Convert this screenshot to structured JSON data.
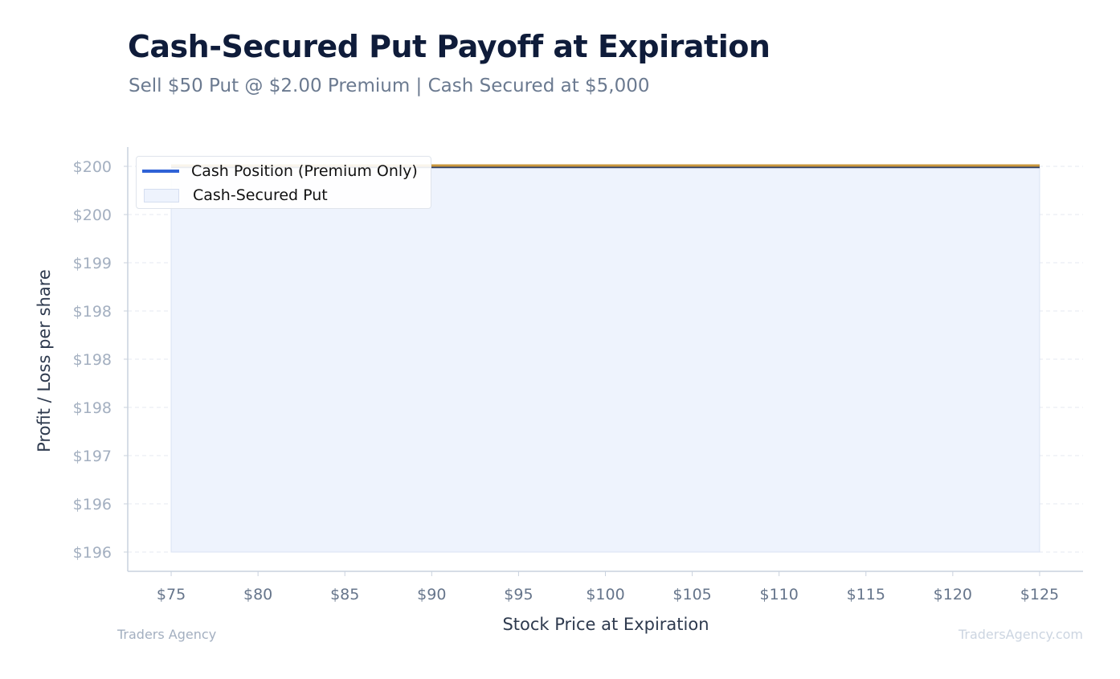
{
  "title": "Cash-Secured Put Payoff at Expiration",
  "subtitle": "Sell $50 Put @ $2.00 Premium | Cash Secured at $5,000",
  "footer": {
    "left": "Traders Agency",
    "right": "TradersAgency.com"
  },
  "colors": {
    "title": "#0f1c3a",
    "subtitle": "#6b7a90",
    "series_line": "#2f62d6",
    "top_line": "#c9973d",
    "area_fill": "#eef3fd",
    "tick_text": "#a3afc0",
    "x_tick_text": "#66758b",
    "grid": "#e6eaf0"
  },
  "chart_data": {
    "type": "area",
    "xlabel": "Stock Price at Expiration",
    "ylabel": "Profit / Loss per share",
    "x_ticks": [
      "$75",
      "$80",
      "$85",
      "$90",
      "$95",
      "$100",
      "$105",
      "$110",
      "$115",
      "$120",
      "$125"
    ],
    "x_tick_values": [
      75,
      80,
      85,
      90,
      95,
      100,
      105,
      110,
      115,
      120,
      125
    ],
    "y_ticks": [
      "$196",
      "$196",
      "$197",
      "$198",
      "$198",
      "$198",
      "$199",
      "$200",
      "$200"
    ],
    "y_tick_values": [
      196.0,
      196.5,
      197.0,
      197.5,
      198.0,
      198.5,
      199.0,
      199.5,
      200.0
    ],
    "xlim": [
      72.5,
      127.5
    ],
    "ylim": [
      195.8,
      200.2
    ],
    "area_baseline": 196.0,
    "grid": true,
    "legend_position": "top-left",
    "series": [
      {
        "name": "Cash Position (Premium Only)",
        "kind": "line",
        "x": [
          75,
          125
        ],
        "y": [
          200,
          200
        ]
      },
      {
        "name": "Cash-Secured Put",
        "kind": "area",
        "x": [
          75,
          125
        ],
        "y": [
          200,
          200
        ]
      }
    ]
  }
}
